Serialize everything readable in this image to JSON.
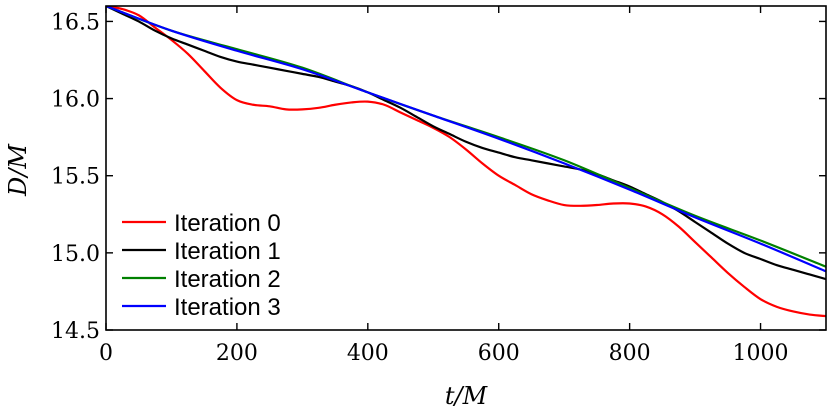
{
  "chart_data": {
    "type": "line",
    "title": "",
    "xlabel": "t/M",
    "ylabel": "D/M",
    "xlim": [
      0,
      1100
    ],
    "ylim": [
      14.5,
      16.6
    ],
    "xticks": [
      0,
      200,
      400,
      600,
      800,
      1000
    ],
    "yticks": [
      14.5,
      15.0,
      15.5,
      16.0,
      16.5
    ],
    "xtick_labels": [
      "0",
      "200",
      "400",
      "600",
      "800",
      "1000"
    ],
    "ytick_labels": [
      "14.5",
      "15.0",
      "15.5",
      "16.0",
      "16.5"
    ],
    "grid": false,
    "legend_position": "lower-left",
    "series": [
      {
        "name": "Iteration 0",
        "color": "#ff0000",
        "x": [
          0,
          25,
          50,
          75,
          100,
          125,
          150,
          175,
          200,
          225,
          250,
          275,
          300,
          325,
          350,
          375,
          400,
          425,
          450,
          475,
          500,
          525,
          550,
          575,
          600,
          625,
          650,
          675,
          700,
          725,
          750,
          775,
          800,
          825,
          850,
          875,
          900,
          925,
          950,
          975,
          1000,
          1025,
          1050,
          1075,
          1100
        ],
        "y": [
          16.6,
          16.58,
          16.54,
          16.46,
          16.38,
          16.29,
          16.18,
          16.07,
          15.99,
          15.96,
          15.95,
          15.93,
          15.93,
          15.94,
          15.96,
          15.975,
          15.98,
          15.96,
          15.91,
          15.86,
          15.81,
          15.75,
          15.67,
          15.58,
          15.5,
          15.44,
          15.38,
          15.34,
          15.31,
          15.305,
          15.31,
          15.32,
          15.32,
          15.3,
          15.25,
          15.17,
          15.07,
          14.97,
          14.87,
          14.78,
          14.7,
          14.65,
          14.62,
          14.6,
          14.59
        ]
      },
      {
        "name": "Iteration 1",
        "color": "#000000",
        "x": [
          0,
          25,
          50,
          75,
          100,
          125,
          150,
          175,
          200,
          225,
          250,
          275,
          300,
          325,
          350,
          375,
          400,
          425,
          450,
          475,
          500,
          525,
          550,
          575,
          600,
          625,
          650,
          675,
          700,
          725,
          750,
          775,
          800,
          825,
          850,
          875,
          900,
          925,
          950,
          975,
          1000,
          1025,
          1050,
          1075,
          1100
        ],
        "y": [
          16.6,
          16.55,
          16.5,
          16.44,
          16.39,
          16.35,
          16.31,
          16.27,
          16.24,
          16.22,
          16.2,
          16.18,
          16.16,
          16.14,
          16.11,
          16.08,
          16.04,
          15.99,
          15.94,
          15.88,
          15.82,
          15.77,
          15.72,
          15.68,
          15.65,
          15.62,
          15.6,
          15.58,
          15.56,
          15.54,
          15.51,
          15.47,
          15.43,
          15.38,
          15.33,
          15.27,
          15.2,
          15.13,
          15.06,
          15.0,
          14.96,
          14.92,
          14.89,
          14.86,
          14.83
        ]
      },
      {
        "name": "Iteration 2",
        "color": "#008000",
        "x": [
          0,
          100,
          200,
          300,
          400,
          500,
          600,
          700,
          800,
          900,
          1000,
          1100
        ],
        "y": [
          16.6,
          16.44,
          16.32,
          16.2,
          16.04,
          15.89,
          15.75,
          15.6,
          15.42,
          15.24,
          15.08,
          14.91
        ]
      },
      {
        "name": "Iteration 3",
        "color": "#0000ff",
        "x": [
          0,
          100,
          200,
          300,
          400,
          500,
          600,
          700,
          800,
          900,
          1000,
          1100
        ],
        "y": [
          16.6,
          16.44,
          16.31,
          16.19,
          16.04,
          15.89,
          15.74,
          15.58,
          15.41,
          15.23,
          15.06,
          14.88
        ]
      }
    ]
  }
}
